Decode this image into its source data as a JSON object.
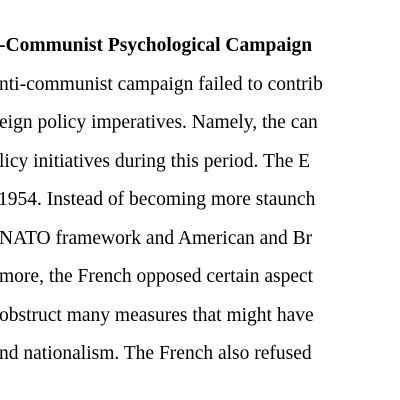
{
  "document": {
    "heading": "-Communist Psychological Campaign",
    "lines": [
      "nti-communist campaign failed to contrib",
      "eign policy imperatives. Namely, the can",
      "licy initiatives during this period. The E",
      " 1954. Instead of becoming more staunch",
      "NATO framework and American and Br",
      "more, the French opposed certain aspect",
      "obstruct many measures that might have",
      "nd nationalism. The French also refused"
    ]
  }
}
